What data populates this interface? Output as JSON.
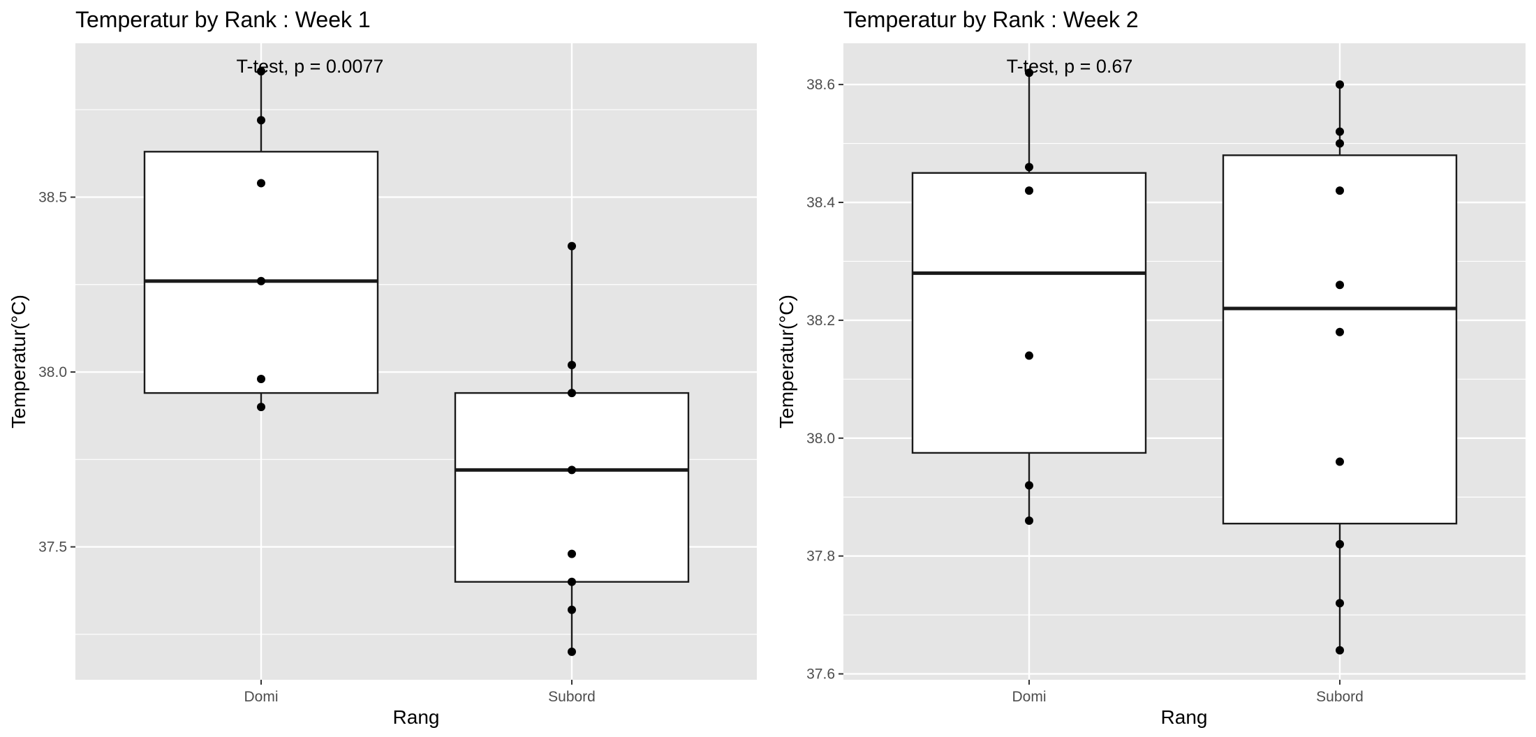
{
  "chart_data": [
    {
      "type": "box",
      "title": "Temperatur by Rank : Week 1",
      "xlabel": "Rang",
      "ylabel": "Temperatur(°C)",
      "categories": [
        "Domi",
        "Subord"
      ],
      "ylim": [
        37.12,
        38.94
      ],
      "y_ticks": [
        37.5,
        38.0,
        38.5
      ],
      "y_tick_labels": [
        "37.5",
        "38.0",
        "38.5"
      ],
      "annotation": "T-test, p = 0.0077",
      "grid": true,
      "boxes": [
        {
          "category": "Domi",
          "lower_whisker": 37.9,
          "q1": 37.94,
          "median": 38.26,
          "q3": 38.63,
          "upper_whisker": 38.86
        },
        {
          "category": "Subord",
          "lower_whisker": 37.2,
          "q1": 37.4,
          "median": 37.72,
          "q3": 37.94,
          "upper_whisker": 38.36
        }
      ],
      "points": [
        {
          "category": "Domi",
          "values": [
            38.86,
            38.72,
            38.54,
            38.26,
            37.98,
            37.9
          ]
        },
        {
          "category": "Subord",
          "values": [
            38.36,
            38.02,
            37.94,
            37.72,
            37.48,
            37.4,
            37.32,
            37.2
          ]
        }
      ]
    },
    {
      "type": "box",
      "title": "Temperatur by Rank : Week 2",
      "xlabel": "Rang",
      "ylabel": "Temperatur(°C)",
      "categories": [
        "Domi",
        "Subord"
      ],
      "ylim": [
        37.59,
        38.67
      ],
      "y_ticks": [
        37.6,
        37.8,
        38.0,
        38.2,
        38.4,
        38.6
      ],
      "y_tick_labels": [
        "37.6",
        "37.8",
        "38.0",
        "38.2",
        "38.4",
        "38.6"
      ],
      "annotation": "T-test, p = 0.67",
      "grid": true,
      "boxes": [
        {
          "category": "Domi",
          "lower_whisker": 37.86,
          "q1": 37.975,
          "median": 38.28,
          "q3": 38.45,
          "upper_whisker": 38.62
        },
        {
          "category": "Subord",
          "lower_whisker": 37.64,
          "q1": 37.855,
          "median": 38.22,
          "q3": 38.48,
          "upper_whisker": 38.6
        }
      ],
      "points": [
        {
          "category": "Domi",
          "values": [
            38.62,
            38.46,
            38.42,
            38.14,
            37.92,
            37.86
          ]
        },
        {
          "category": "Subord",
          "values": [
            38.6,
            38.52,
            38.5,
            38.42,
            38.26,
            38.18,
            37.96,
            37.82,
            37.72,
            37.64
          ]
        }
      ]
    }
  ]
}
